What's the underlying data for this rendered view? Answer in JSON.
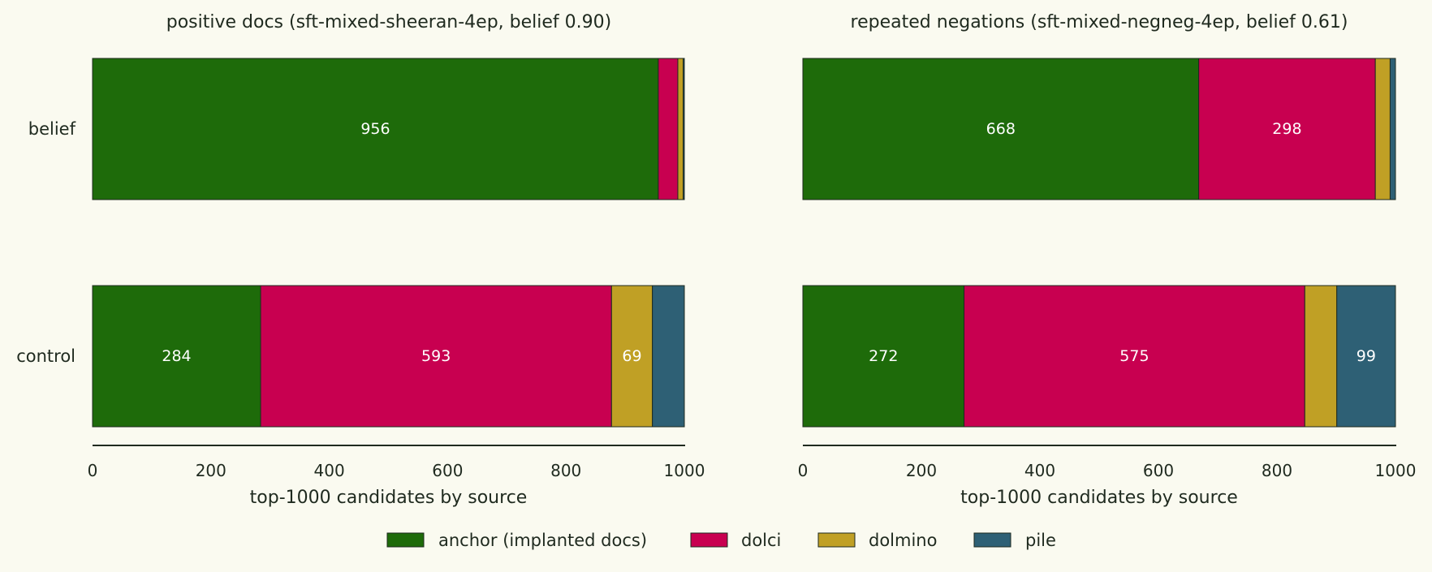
{
  "chart_data": [
    {
      "type": "bar",
      "orientation": "horizontal-stacked",
      "title": "positive docs (sft-mixed-sheeran-4ep, belief 0.90)",
      "xlabel": "top-1000 candidates by source",
      "xlim": [
        0,
        1000
      ],
      "xticks": [
        "0",
        "200",
        "400",
        "800",
        "1000"
      ],
      "xticks_all": [
        0,
        200,
        400,
        600,
        800,
        1000
      ],
      "categories": [
        "belief",
        "control"
      ],
      "series": [
        {
          "name": "anchor (implanted docs)",
          "values": [
            956,
            284
          ],
          "labels": [
            "956",
            "284"
          ]
        },
        {
          "name": "dolci",
          "values": [
            33,
            593
          ],
          "labels": [
            "",
            "593"
          ]
        },
        {
          "name": "dolmino",
          "values": [
            9,
            69
          ],
          "labels": [
            "",
            "69"
          ]
        },
        {
          "name": "pile",
          "values": [
            2,
            54
          ],
          "labels": [
            "",
            ""
          ]
        }
      ]
    },
    {
      "type": "bar",
      "orientation": "horizontal-stacked",
      "title": "repeated negations (sft-mixed-negneg-4ep, belief 0.61)",
      "xlabel": "top-1000 candidates by source",
      "xlim": [
        0,
        1000
      ],
      "xticks_all": [
        0,
        200,
        400,
        600,
        800,
        1000
      ],
      "categories": [
        "belief",
        "control"
      ],
      "series": [
        {
          "name": "anchor (implanted docs)",
          "values": [
            668,
            272
          ],
          "labels": [
            "668",
            "272"
          ]
        },
        {
          "name": "dolci",
          "values": [
            298,
            575
          ],
          "labels": [
            "298",
            "575"
          ]
        },
        {
          "name": "dolmino",
          "values": [
            25,
            54
          ],
          "labels": [
            "",
            ""
          ]
        },
        {
          "name": "pile",
          "values": [
            9,
            99
          ],
          "labels": [
            "",
            "99"
          ]
        }
      ]
    }
  ],
  "colors": {
    "anchor (implanted docs)": "#1e6b0a",
    "dolci": "#c80050",
    "dolmino": "#c0a025",
    "pile": "#2e6075",
    "background": "#fafaf0",
    "axis": "#1f2a1f"
  },
  "legend": {
    "position": "bottom-center",
    "items": [
      "anchor (implanted docs)",
      "dolci",
      "dolmino",
      "pile"
    ]
  }
}
